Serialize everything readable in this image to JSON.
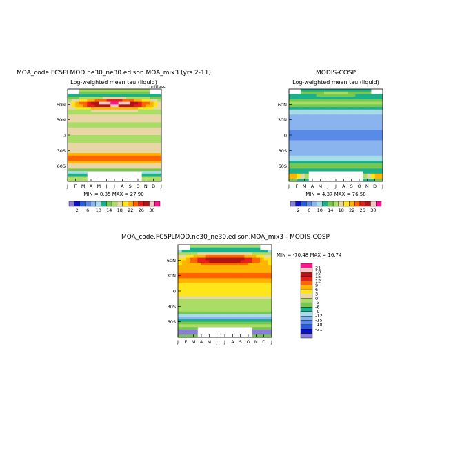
{
  "chart_data": [
    {
      "type": "heatmap",
      "title": "MOA_code.FC5PLMOD.ne30_ne30.edison.MOA_mix3 (yrs 2-11)",
      "subtitle": "Log-weighted mean tau (liquid)",
      "unit_label": "unitless",
      "stats": "MIN =    0.35 MAX =   27.90",
      "x_tick_labels": [
        "J",
        "F",
        "M",
        "A",
        "M",
        "J",
        "J",
        "A",
        "S",
        "O",
        "N",
        "D",
        "J"
      ],
      "y_tick_labels": [
        "60N",
        "30N",
        "0",
        "30S",
        "60S"
      ],
      "colorbar_labels": [
        "2",
        "6",
        "10",
        "14",
        "18",
        "22",
        "26",
        "30"
      ],
      "colors": [
        "#8a7fd6",
        "#0a10c8",
        "#2a5ae0",
        "#5a8ae8",
        "#8ab4ee",
        "#a8dce8",
        "#1ab08a",
        "#78c850",
        "#aadd66",
        "#e8d6a6",
        "#ffe619",
        "#ffb400",
        "#ff6400",
        "#e61e1e",
        "#b01414",
        "#f5c8c8",
        "#ff1493"
      ]
    },
    {
      "type": "heatmap",
      "title": "MODIS-COSP",
      "subtitle": "Log-weighted mean tau (liquid)",
      "stats": "MIN =    4.37 MAX =   76.58",
      "x_tick_labels": [
        "J",
        "F",
        "M",
        "A",
        "M",
        "J",
        "J",
        "A",
        "S",
        "O",
        "N",
        "D",
        "J"
      ],
      "y_tick_labels": [
        "60N",
        "30N",
        "0",
        "30S",
        "60S"
      ],
      "colorbar_labels": [
        "2",
        "6",
        "10",
        "14",
        "18",
        "22",
        "26",
        "30"
      ]
    },
    {
      "type": "heatmap",
      "title": "MOA_code.FC5PLMOD.ne30_ne30.edison.MOA_mix3 - MODIS-COSP",
      "stats": "MIN =  -70.48 MAX =   16.74",
      "x_tick_labels": [
        "J",
        "F",
        "M",
        "A",
        "M",
        "J",
        "J",
        "A",
        "S",
        "O",
        "N",
        "D",
        "J"
      ],
      "y_tick_labels": [
        "60N",
        "30N",
        "0",
        "30S",
        "60S"
      ],
      "colorbar_labels": [
        "21",
        "18",
        "15",
        "12",
        "9",
        "6",
        "3",
        "0",
        "-3",
        "-6",
        "-9",
        "-12",
        "-15",
        "-18",
        "-21"
      ],
      "colors": [
        "#ff1493",
        "#f5c8c8",
        "#b01414",
        "#e61e1e",
        "#ff6400",
        "#ffb400",
        "#ffe619",
        "#e8d6a6",
        "#aadd66",
        "#78c850",
        "#1ab08a",
        "#a8dce8",
        "#8ab4ee",
        "#5a8ae8",
        "#2a5ae0",
        "#0a10c8",
        "#8a7fd6"
      ]
    }
  ]
}
